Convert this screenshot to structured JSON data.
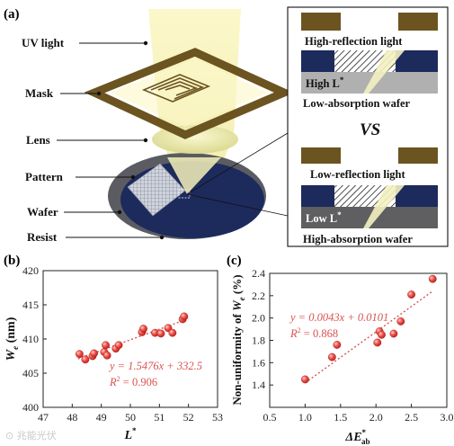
{
  "panel_a": {
    "tag": "(a)",
    "labels": {
      "uv_light": "UV light",
      "mask": "Mask",
      "lens": "Lens",
      "pattern": "Pattern",
      "wafer": "Wafer",
      "resist": "Resist"
    },
    "inset_top": {
      "light": "High-reflection light",
      "l_label": "High L",
      "l_sup": "*",
      "wafer": "Low-absorption wafer"
    },
    "vs": "VS",
    "inset_bottom": {
      "light": "Low-reflection light",
      "l_label": "Low L",
      "l_sup": "*",
      "wafer": "High-absorption wafer"
    }
  },
  "panel_b": {
    "tag": "(b)"
  },
  "panel_c": {
    "tag": "(c)"
  },
  "watermark": "⊙ 兆能光伏",
  "chart_data": [
    {
      "type": "scatter",
      "panel": "(b)",
      "xlabel": "L",
      "xlabel_sup": "*",
      "ylabel": "W",
      "ylabel_sub": "e",
      "ylabel_unit": " (nm)",
      "xlim": [
        47,
        53
      ],
      "ylim": [
        400,
        420
      ],
      "xticks": [
        47,
        48,
        49,
        50,
        51,
        52,
        53
      ],
      "yticks": [
        400,
        405,
        410,
        415,
        420
      ],
      "points": [
        [
          48.25,
          407.8
        ],
        [
          48.45,
          407.0
        ],
        [
          48.7,
          407.5
        ],
        [
          48.75,
          407.9
        ],
        [
          49.1,
          408.1
        ],
        [
          49.15,
          409.1
        ],
        [
          49.2,
          407.6
        ],
        [
          49.5,
          408.6
        ],
        [
          49.6,
          409.1
        ],
        [
          50.4,
          411.0
        ],
        [
          50.45,
          411.5
        ],
        [
          50.85,
          410.9
        ],
        [
          51.05,
          410.8
        ],
        [
          51.3,
          411.6
        ],
        [
          51.45,
          410.9
        ],
        [
          51.8,
          412.9
        ],
        [
          51.85,
          413.3
        ]
      ],
      "fit": {
        "slope": 1.5476,
        "intercept": 332.5,
        "x_range": [
          48.2,
          52.0
        ]
      },
      "equation": "y = 1.5476x + 332.5",
      "r2_label": "R",
      "r2_sup": "2",
      "r2_value": " = 0.906",
      "colors": {
        "marker": "#e8403a",
        "fit": "#d9534f",
        "axis": "#222222"
      }
    },
    {
      "type": "scatter",
      "panel": "(c)",
      "xlabel": "ΔE",
      "xlabel_sup": "*",
      "xlabel_sub": "ab",
      "ylabel_prefix": "Non-uniformity of ",
      "ylabel_var": "W",
      "ylabel_sub": "e",
      "ylabel_unit": " (%)",
      "xlim": [
        0.5,
        3.0
      ],
      "ylim": [
        1.2,
        2.4
      ],
      "xticks": [
        0.5,
        1.0,
        1.5,
        2.0,
        2.5,
        3.0
      ],
      "yticks": [
        1.4,
        1.6,
        1.8,
        2.0,
        2.2,
        2.4
      ],
      "points": [
        [
          1.0,
          1.45
        ],
        [
          1.38,
          1.65
        ],
        [
          1.45,
          1.76
        ],
        [
          2.02,
          1.78
        ],
        [
          2.05,
          1.88
        ],
        [
          2.08,
          1.85
        ],
        [
          2.25,
          1.86
        ],
        [
          2.35,
          1.97
        ],
        [
          2.5,
          2.21
        ],
        [
          2.8,
          2.35
        ]
      ],
      "fit": {
        "slope": 0.0043,
        "intercept": 0.0101,
        "x_range": [
          1.0,
          2.8
        ],
        "y_range": [
          1.42,
          2.24
        ]
      },
      "equation": "y = 0.0043x + 0.0101",
      "r2_label": "R",
      "r2_sup": "2",
      "r2_value": " = 0.868",
      "colors": {
        "marker": "#e8403a",
        "fit": "#d9534f",
        "axis": "#222222"
      }
    }
  ]
}
